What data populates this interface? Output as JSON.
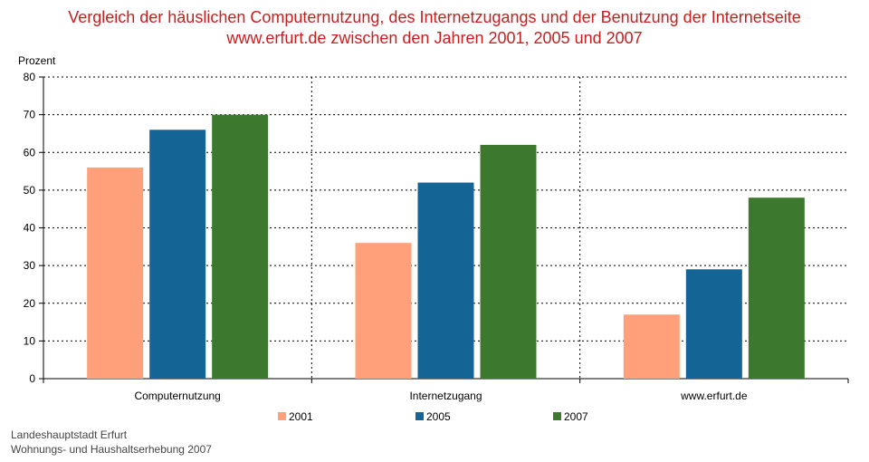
{
  "title": {
    "line1": "Vergleich der häuslichen Computernutzung, des Internetzugangs und der Benutzung der Internetseite",
    "line2": "www.erfurt.de zwischen den Jahren 2001, 2005 und 2007"
  },
  "source": {
    "line1": "Landeshauptstadt Erfurt",
    "line2": "Wohnungs- und Haushaltserhebung 2007"
  },
  "colors": {
    "title": "#c81e1e",
    "s2001": "#ffa07a",
    "s2005": "#146496",
    "s2007": "#3c782d"
  },
  "chart_data": {
    "type": "bar",
    "title": "Vergleich der häuslichen Computernutzung, des Internetzugangs und der Benutzung der Internetseite www.erfurt.de zwischen den Jahren 2001, 2005 und 2007",
    "ylabel": "Prozent",
    "xlabel": "",
    "ylim": [
      0,
      80
    ],
    "yticks": [
      0,
      10,
      20,
      30,
      40,
      50,
      60,
      70,
      80
    ],
    "grid": true,
    "legend_position": "bottom",
    "categories": [
      "Computernutzung",
      "Internetzugang",
      "www.erfurt.de"
    ],
    "series": [
      {
        "name": "2001",
        "color": "#ffa07a",
        "values": [
          56,
          36,
          17
        ]
      },
      {
        "name": "2005",
        "color": "#146496",
        "values": [
          66,
          52,
          29
        ]
      },
      {
        "name": "2007",
        "color": "#3c782d",
        "values": [
          70,
          62,
          48
        ]
      }
    ]
  }
}
